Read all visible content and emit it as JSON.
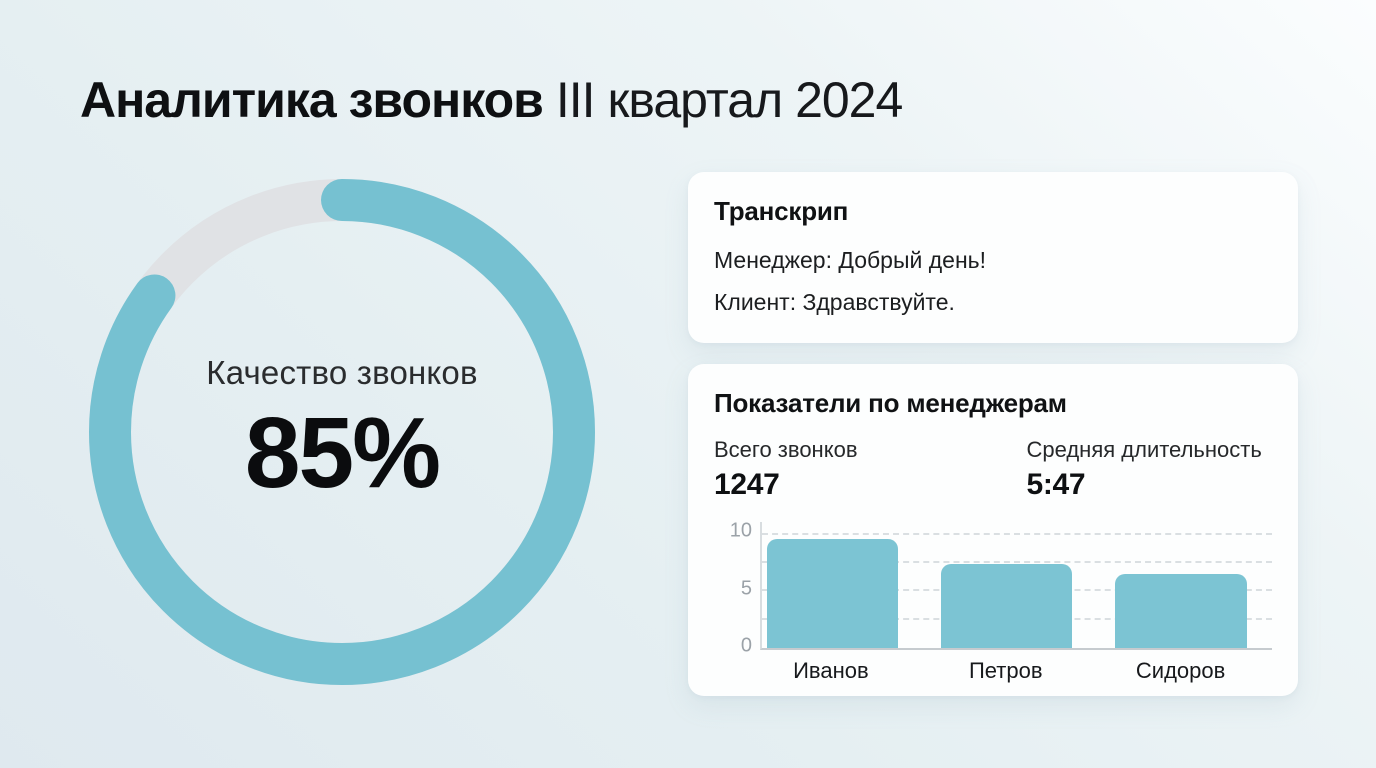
{
  "page_title": {
    "bold": "Аналитика звонков",
    "rest": "III квартал 2024"
  },
  "donut": {
    "label": "Качество звонков",
    "value_text": "85%"
  },
  "transcript_card": {
    "title": "Транскрип",
    "lines": [
      "Менеджер: Добрый день!",
      "Клиент: Здравствуйте."
    ]
  },
  "metrics_card": {
    "title": "Показатели по менеджерам",
    "stats": [
      {
        "label": "Всего звонков",
        "value": "1247"
      },
      {
        "label": "Средняя длительность",
        "value": "5:47"
      }
    ]
  },
  "chart_data": [
    {
      "type": "donut",
      "title": "Качество звонков",
      "value_percent": 85,
      "value_label": "85%",
      "remainder_percent": 15,
      "start": "12 o'clock, clockwise, rounded caps",
      "arc_color": "#76C1D1",
      "track_color": "#E0E2E5"
    },
    {
      "type": "bar",
      "title": "Показатели по менеджерам",
      "categories": [
        "Иванов",
        "Петров",
        "Сидоров"
      ],
      "values": [
        9.6,
        7.4,
        6.5
      ],
      "xlabel": "",
      "ylabel": "",
      "ylim": [
        0,
        10
      ],
      "yticks": [
        0,
        5,
        10
      ],
      "gridlines": [
        2.5,
        5,
        7.5,
        10
      ],
      "grid_style": "dashed horizontal",
      "legend": "none",
      "bar_color": "#7CC4D3"
    }
  ],
  "colors": {
    "background_light": "#FBFDFE",
    "background_dark": "#DFE9EF",
    "card_background": "#FDFEFE",
    "accent_teal": "#76C1D1",
    "bar_teal": "#7CC4D3",
    "donut_track": "#E0E2E5",
    "text_primary": "#0E1012",
    "tick_label_gray": "#9BA2A8"
  }
}
